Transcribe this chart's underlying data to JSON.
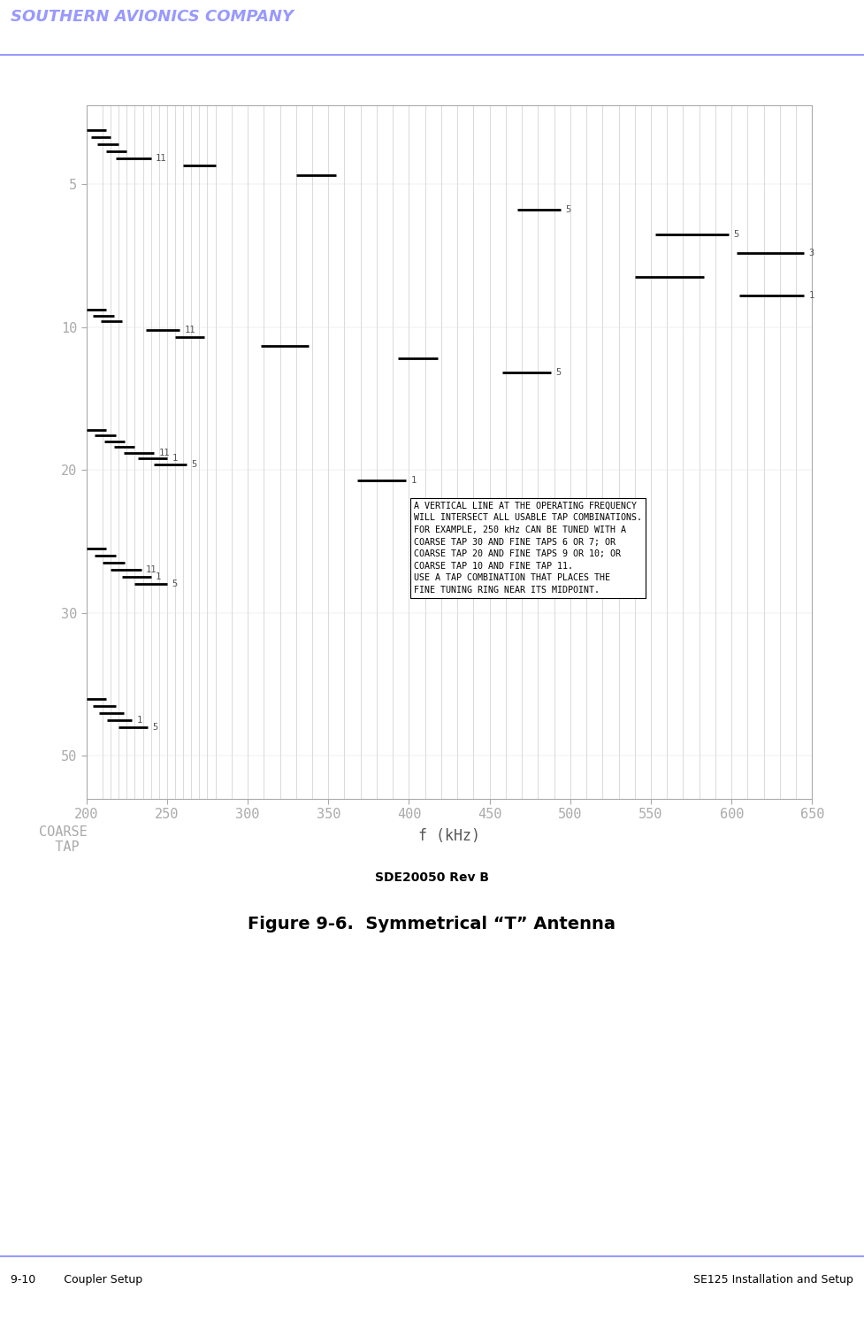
{
  "header_text": "SOUTHERN AVIONICS COMPANY",
  "header_color": "#9999ff",
  "page_bg": "#ffffff",
  "footer_line1": "SDE20050 Rev B",
  "footer_line2": "Figure 9-6.  Symmetrical “T” Antenna",
  "bottom_left": "9-10        Coupler Setup",
  "bottom_right": "SE125 Installation and Setup",
  "xlabel": "f (kHz)",
  "xmin": 200,
  "xmax": 650,
  "annotation_text": "A VERTICAL LINE AT THE OPERATING FREQUENCY\nWILL INTERSECT ALL USABLE TAP COMBINATIONS.\nFOR EXAMPLE, 250 kHz CAN BE TUNED WITH A\nCOARSE TAP 30 AND FINE TAPS 6 OR 7; OR\nCOARSE TAP 20 AND FINE TAPS 9 OR 10; OR\nCOARSE TAP 10 AND FINE TAP 11.\nUSE A TAP COMBINATION THAT PLACES THE\nFINE TUNING RING NEAR ITS MIDPOINT.",
  "ytick_labels": [
    "5",
    "10",
    "20",
    "30",
    "50"
  ],
  "ytick_vals": [
    0,
    1,
    2,
    3,
    4
  ],
  "xtick_labels": [
    "200",
    "250",
    "300",
    "350",
    "400",
    "450",
    "500",
    "550",
    "600",
    "650"
  ],
  "vlines_x": [
    200,
    210,
    215,
    220,
    225,
    230,
    235,
    240,
    245,
    250,
    255,
    260,
    265,
    270,
    275,
    280,
    290,
    300,
    310,
    320,
    330,
    340,
    350,
    360,
    370,
    380,
    390,
    400,
    410,
    420,
    430,
    440,
    450,
    460,
    470,
    480,
    490,
    500,
    510,
    520,
    530,
    540,
    550,
    560,
    570,
    580,
    590,
    600,
    610,
    620,
    630,
    640,
    650
  ],
  "segments": [
    [
      200,
      212,
      -0.38,
      ""
    ],
    [
      203,
      215,
      -0.33,
      ""
    ],
    [
      207,
      220,
      -0.28,
      ""
    ],
    [
      212,
      225,
      -0.23,
      ""
    ],
    [
      218,
      240,
      -0.18,
      "11"
    ],
    [
      260,
      280,
      -0.13,
      ""
    ],
    [
      330,
      355,
      -0.06,
      ""
    ],
    [
      467,
      494,
      0.18,
      "5"
    ],
    [
      553,
      598,
      0.35,
      "5"
    ],
    [
      603,
      645,
      0.48,
      "3"
    ],
    [
      540,
      583,
      0.65,
      ""
    ],
    [
      605,
      645,
      0.78,
      "1"
    ],
    [
      200,
      212,
      0.88,
      ""
    ],
    [
      204,
      217,
      0.92,
      ""
    ],
    [
      209,
      222,
      0.96,
      ""
    ],
    [
      237,
      258,
      1.02,
      "11"
    ],
    [
      255,
      273,
      1.07,
      ""
    ],
    [
      308,
      338,
      1.13,
      ""
    ],
    [
      393,
      418,
      1.22,
      ""
    ],
    [
      458,
      488,
      1.32,
      "5"
    ],
    [
      200,
      212,
      1.72,
      ""
    ],
    [
      205,
      218,
      1.76,
      ""
    ],
    [
      211,
      224,
      1.8,
      ""
    ],
    [
      217,
      230,
      1.84,
      ""
    ],
    [
      223,
      242,
      1.88,
      "11"
    ],
    [
      232,
      250,
      1.92,
      "1"
    ],
    [
      242,
      262,
      1.96,
      "5"
    ],
    [
      368,
      398,
      2.07,
      "1"
    ],
    [
      200,
      212,
      2.55,
      ""
    ],
    [
      205,
      218,
      2.6,
      ""
    ],
    [
      210,
      224,
      2.65,
      ""
    ],
    [
      215,
      234,
      2.7,
      "11"
    ],
    [
      222,
      240,
      2.75,
      "1"
    ],
    [
      230,
      250,
      2.8,
      "5"
    ],
    [
      200,
      212,
      3.6,
      ""
    ],
    [
      204,
      218,
      3.65,
      ""
    ],
    [
      208,
      223,
      3.7,
      ""
    ],
    [
      213,
      228,
      3.75,
      "1"
    ],
    [
      220,
      238,
      3.8,
      "5"
    ]
  ]
}
